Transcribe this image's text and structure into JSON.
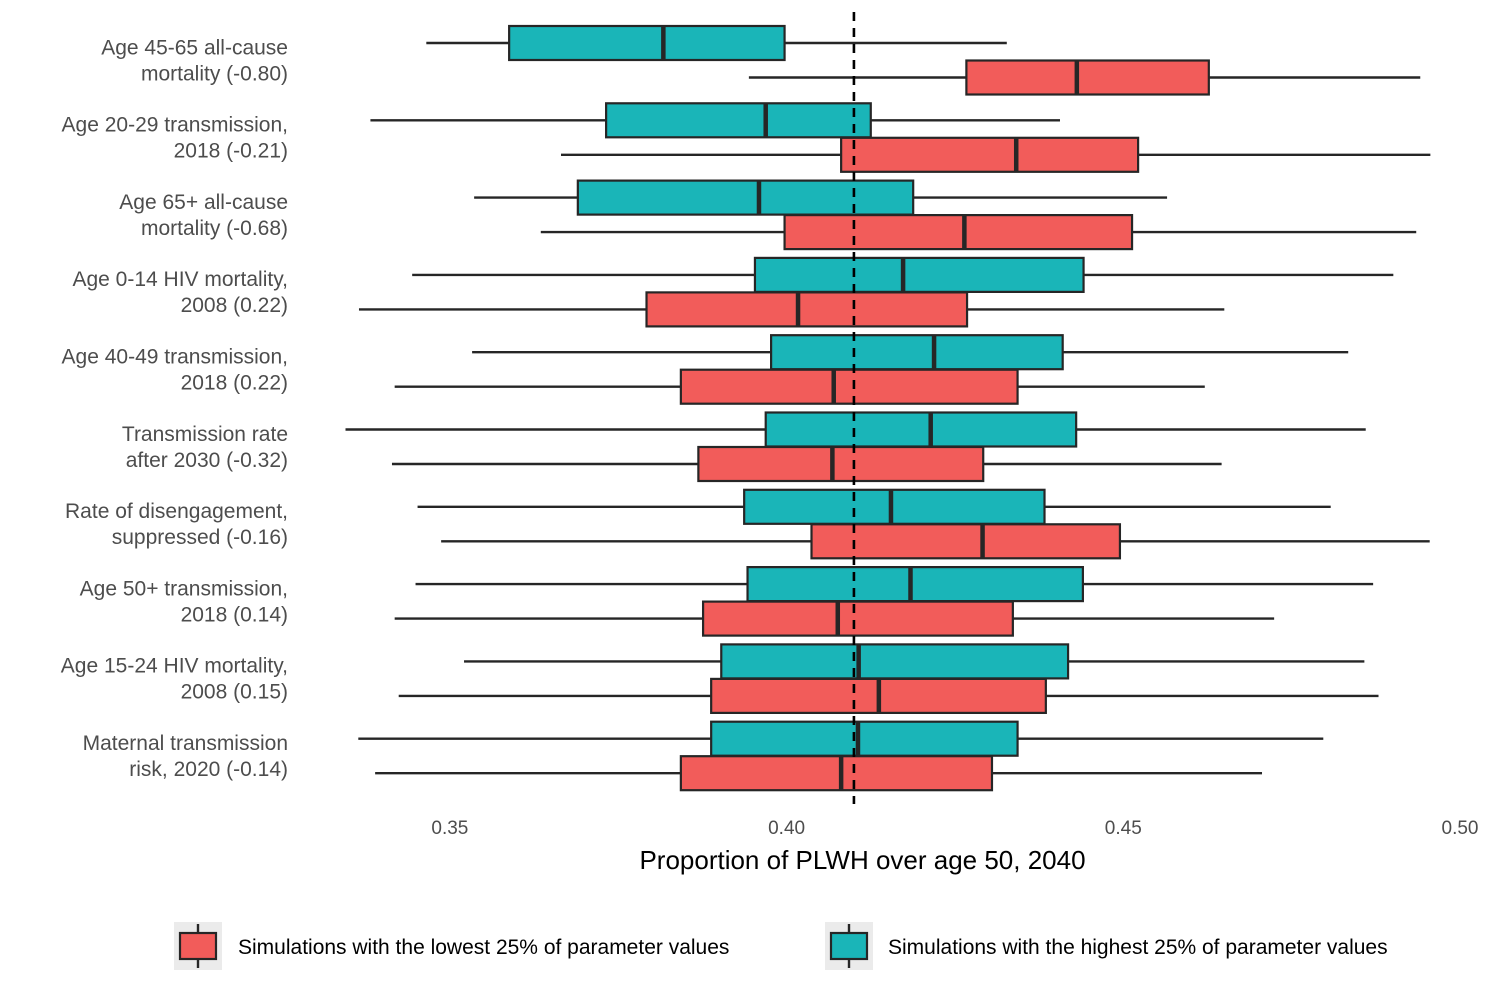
{
  "chart_data": {
    "type": "boxplot",
    "title": "",
    "xlabel": "Proportion of PLWH over age 50, 2040",
    "ylabel": "",
    "xlim": [
      0.327,
      0.5
    ],
    "x_ticks": [
      "0.35",
      "0.40",
      "0.45",
      "0.50"
    ],
    "x_tick_values": [
      0.35,
      0.4,
      0.45,
      0.5
    ],
    "reference_line": 0.41,
    "colors": {
      "low": "#F25C5A",
      "high": "#1AB5B8",
      "outline": "#262626",
      "reference": "#000000"
    },
    "grid": false,
    "legend_position": "bottom",
    "series": [
      {
        "key": "low",
        "name": "Simulations with the lowest 25% of parameter values"
      },
      {
        "key": "high",
        "name": "Simulations with the highest 25% of parameter values"
      }
    ],
    "categories": [
      {
        "label": [
          "Age 45-65 all-cause",
          "mortality (-0.80)"
        ],
        "high": {
          "min": 0.3465,
          "q1": 0.3588,
          "median": 0.3817,
          "q3": 0.3997,
          "max": 0.4327
        },
        "low": {
          "min": 0.3944,
          "q1": 0.4267,
          "median": 0.4431,
          "q3": 0.4627,
          "max": 0.4941
        }
      },
      {
        "label": [
          "Age 20-29 transmission,",
          "2018 (-0.21)"
        ],
        "high": {
          "min": 0.3382,
          "q1": 0.3732,
          "median": 0.3969,
          "q3": 0.4125,
          "max": 0.4406
        },
        "low": {
          "min": 0.3665,
          "q1": 0.4081,
          "median": 0.4341,
          "q3": 0.4522,
          "max": 0.4956
        }
      },
      {
        "label": [
          "Age 65+ all-cause",
          "mortality (-0.68)"
        ],
        "high": {
          "min": 0.3536,
          "q1": 0.369,
          "median": 0.3959,
          "q3": 0.4188,
          "max": 0.4565
        },
        "low": {
          "min": 0.3635,
          "q1": 0.3997,
          "median": 0.4264,
          "q3": 0.4513,
          "max": 0.4935
        }
      },
      {
        "label": [
          "Age 0-14 HIV mortality,",
          "2008 (0.22)"
        ],
        "high": {
          "min": 0.3444,
          "q1": 0.3953,
          "median": 0.4173,
          "q3": 0.4441,
          "max": 0.4901
        },
        "low": {
          "min": 0.3365,
          "q1": 0.3792,
          "median": 0.4017,
          "q3": 0.4268,
          "max": 0.465
        }
      },
      {
        "label": [
          "Age 40-49 transmission,",
          "2018 (0.22)"
        ],
        "high": {
          "min": 0.3533,
          "q1": 0.3977,
          "median": 0.4219,
          "q3": 0.441,
          "max": 0.4834
        },
        "low": {
          "min": 0.3418,
          "q1": 0.3843,
          "median": 0.407,
          "q3": 0.4343,
          "max": 0.4621
        }
      },
      {
        "label": [
          "Transmission rate",
          "after 2030 (-0.32)"
        ],
        "high": {
          "min": 0.3345,
          "q1": 0.3969,
          "median": 0.4214,
          "q3": 0.443,
          "max": 0.486
        },
        "low": {
          "min": 0.3414,
          "q1": 0.3869,
          "median": 0.4068,
          "q3": 0.4292,
          "max": 0.4646
        }
      },
      {
        "label": [
          "Rate of disengagement,",
          "suppressed (-0.16)"
        ],
        "high": {
          "min": 0.3452,
          "q1": 0.3937,
          "median": 0.4155,
          "q3": 0.4383,
          "max": 0.4808
        },
        "low": {
          "min": 0.3487,
          "q1": 0.4037,
          "median": 0.4291,
          "q3": 0.4495,
          "max": 0.4955
        }
      },
      {
        "label": [
          "Age 50+ transmission,",
          "2018 (0.14)"
        ],
        "high": {
          "min": 0.3449,
          "q1": 0.3942,
          "median": 0.4184,
          "q3": 0.444,
          "max": 0.4871
        },
        "low": {
          "min": 0.3418,
          "q1": 0.3876,
          "median": 0.4076,
          "q3": 0.4336,
          "max": 0.4724
        }
      },
      {
        "label": [
          "Age 15-24 HIV mortality,",
          "2008 (0.15)"
        ],
        "high": {
          "min": 0.3521,
          "q1": 0.3903,
          "median": 0.4107,
          "q3": 0.4418,
          "max": 0.4858
        },
        "low": {
          "min": 0.3424,
          "q1": 0.3888,
          "median": 0.4137,
          "q3": 0.4385,
          "max": 0.4879
        }
      },
      {
        "label": [
          "Maternal transmission",
          "risk, 2020 (-0.14)"
        ],
        "high": {
          "min": 0.3364,
          "q1": 0.3888,
          "median": 0.4106,
          "q3": 0.4343,
          "max": 0.4797
        },
        "low": {
          "min": 0.3389,
          "q1": 0.3843,
          "median": 0.4081,
          "q3": 0.4305,
          "max": 0.4706
        }
      }
    ]
  }
}
